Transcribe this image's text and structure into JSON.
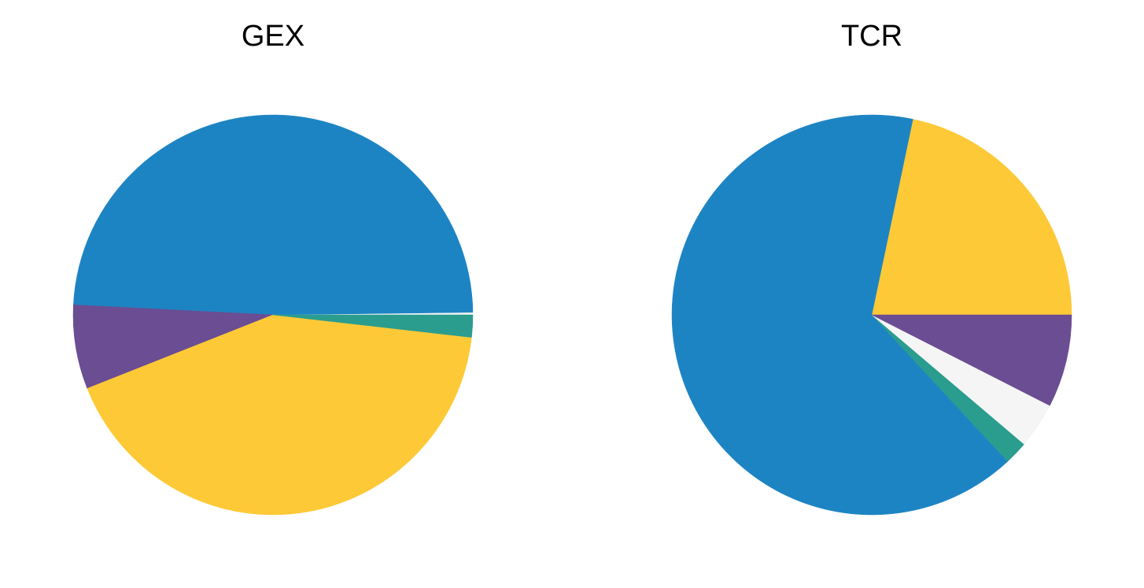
{
  "chart_data": [
    {
      "type": "pie",
      "title": "GEX",
      "start_angle_deg": 0,
      "direction": "counterclockwise",
      "slices": [
        {
          "value": 0.2,
          "color": "#f5f5f5"
        },
        {
          "value": 49.0,
          "color": "#1d84c4"
        },
        {
          "value": 6.8,
          "color": "#6b4d93"
        },
        {
          "value": 42.2,
          "color": "#fec937"
        },
        {
          "value": 1.8,
          "color": "#2a9d8f"
        }
      ]
    },
    {
      "type": "pie",
      "title": "TCR",
      "start_angle_deg": 0,
      "direction": "counterclockwise",
      "slices": [
        {
          "value": 21.7,
          "color": "#fec937"
        },
        {
          "value": 65.2,
          "color": "#1d84c4"
        },
        {
          "value": 1.9,
          "color": "#2a9d8f"
        },
        {
          "value": 3.7,
          "color": "#f5f5f5"
        },
        {
          "value": 7.5,
          "color": "#6b4d93"
        }
      ]
    }
  ]
}
